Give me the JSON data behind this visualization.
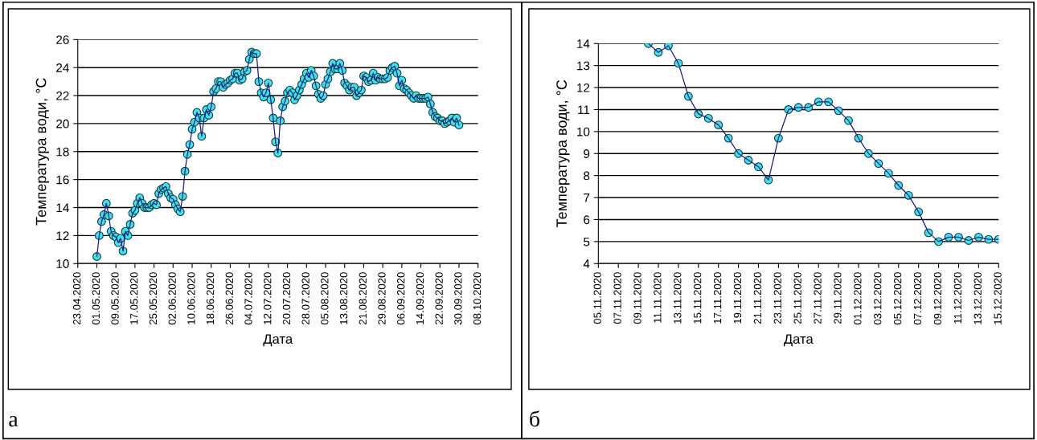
{
  "chart_data": [
    {
      "type": "line",
      "xlabel": "Дата",
      "ylabel": "Температура води, °C",
      "annotations": [
        "а"
      ],
      "x": [
        "2020-05-01",
        "2020-05-02",
        "2020-05-03",
        "2020-05-04",
        "2020-05-05",
        "2020-05-06",
        "2020-05-07",
        "2020-05-08",
        "2020-05-09",
        "2020-05-10",
        "2020-05-11",
        "2020-05-12",
        "2020-05-13",
        "2020-05-14",
        "2020-05-15",
        "2020-05-16",
        "2020-05-17",
        "2020-05-18",
        "2020-05-19",
        "2020-05-20",
        "2020-05-21",
        "2020-05-22",
        "2020-05-23",
        "2020-05-24",
        "2020-05-25",
        "2020-05-26",
        "2020-05-27",
        "2020-05-28",
        "2020-05-29",
        "2020-05-30",
        "2020-05-31",
        "2020-06-01",
        "2020-06-02",
        "2020-06-03",
        "2020-06-04",
        "2020-06-05",
        "2020-06-06",
        "2020-06-07",
        "2020-06-08",
        "2020-06-09",
        "2020-06-10",
        "2020-06-11",
        "2020-06-12",
        "2020-06-13",
        "2020-06-14",
        "2020-06-15",
        "2020-06-16",
        "2020-06-17",
        "2020-06-18",
        "2020-06-19",
        "2020-06-20",
        "2020-06-21",
        "2020-06-22",
        "2020-06-23",
        "2020-06-24",
        "2020-06-25",
        "2020-06-26",
        "2020-06-27",
        "2020-06-28",
        "2020-06-29",
        "2020-06-30",
        "2020-07-01",
        "2020-07-02",
        "2020-07-03",
        "2020-07-04",
        "2020-07-05",
        "2020-07-06",
        "2020-07-07",
        "2020-07-08",
        "2020-07-09",
        "2020-07-10",
        "2020-07-11",
        "2020-07-12",
        "2020-07-13",
        "2020-07-14",
        "2020-07-15",
        "2020-07-16",
        "2020-07-17",
        "2020-07-18",
        "2020-07-19",
        "2020-07-20",
        "2020-07-21",
        "2020-07-22",
        "2020-07-23",
        "2020-07-24",
        "2020-07-25",
        "2020-07-26",
        "2020-07-27",
        "2020-07-28",
        "2020-07-29",
        "2020-07-30",
        "2020-07-31",
        "2020-08-01",
        "2020-08-02",
        "2020-08-03",
        "2020-08-04",
        "2020-08-05",
        "2020-08-06",
        "2020-08-07",
        "2020-08-08",
        "2020-08-09",
        "2020-08-10",
        "2020-08-11",
        "2020-08-12",
        "2020-08-13",
        "2020-08-14",
        "2020-08-15",
        "2020-08-16",
        "2020-08-17",
        "2020-08-18",
        "2020-08-19",
        "2020-08-20",
        "2020-08-21",
        "2020-08-22",
        "2020-08-23",
        "2020-08-24",
        "2020-08-25",
        "2020-08-26",
        "2020-08-27",
        "2020-08-28",
        "2020-08-29",
        "2020-08-30",
        "2020-08-31",
        "2020-09-01",
        "2020-09-02",
        "2020-09-03",
        "2020-09-04",
        "2020-09-05",
        "2020-09-06",
        "2020-09-07",
        "2020-09-08",
        "2020-09-09",
        "2020-09-10",
        "2020-09-11",
        "2020-09-12",
        "2020-09-13",
        "2020-09-14",
        "2020-09-15",
        "2020-09-16",
        "2020-09-17",
        "2020-09-18",
        "2020-09-19",
        "2020-09-20",
        "2020-09-21",
        "2020-09-22",
        "2020-09-23",
        "2020-09-24",
        "2020-09-25",
        "2020-09-26",
        "2020-09-27",
        "2020-09-28",
        "2020-09-29",
        "2020-09-30"
      ],
      "series": [
        {
          "color": "#1a1a8c",
          "values": [
            10.5,
            12.0,
            13.0,
            13.5,
            14.3,
            13.4,
            12.3,
            12.0,
            11.9,
            11.5,
            11.8,
            10.9,
            12.3,
            12.0,
            12.8,
            13.6,
            13.8,
            14.3,
            14.7,
            14.3,
            14.0,
            14.0,
            14.0,
            14.2,
            14.3,
            14.2,
            15.0,
            15.3,
            15.4,
            15.5,
            15.0,
            14.7,
            14.6,
            14.2,
            13.9,
            13.7,
            14.8,
            16.6,
            17.8,
            18.5,
            19.6,
            20.1,
            20.8,
            20.4,
            19.1,
            20.4,
            21.0,
            20.6,
            21.2,
            22.3,
            22.5,
            23.0,
            23.0,
            22.6,
            22.8,
            22.9,
            23.1,
            23.2,
            23.6,
            23.6,
            23.1,
            23.2,
            23.7,
            23.8,
            24.6,
            25.1,
            25.0,
            25.0,
            23.0,
            22.2,
            21.9,
            22.2,
            22.9,
            21.7,
            20.4,
            18.7,
            17.9,
            20.2,
            21.2,
            21.6,
            22.2,
            22.4,
            22.2,
            21.7,
            22.0,
            22.4,
            22.8,
            23.2,
            23.6,
            23.3,
            23.8,
            23.4,
            22.7,
            22.1,
            21.8,
            22.0,
            22.8,
            23.2,
            23.7,
            24.3,
            23.9,
            23.9,
            24.3,
            23.8,
            22.9,
            22.7,
            22.4,
            22.6,
            22.6,
            22.0,
            22.2,
            22.4,
            23.4,
            23.3,
            23.0,
            23.1,
            23.6,
            23.1,
            23.3,
            23.2,
            23.2,
            23.2,
            23.3,
            23.8,
            24.0,
            24.1,
            23.6,
            22.7,
            23.1,
            22.5,
            22.4,
            22.2,
            22.0,
            21.8,
            22.0,
            21.8,
            21.8,
            21.8,
            21.8,
            21.9,
            21.4,
            20.8,
            20.5,
            20.4,
            20.2,
            20.2,
            20.0,
            20.1,
            20.2,
            20.4,
            20.1,
            20.4,
            19.9
          ]
        }
      ],
      "marker": "circle",
      "line_style": "solid",
      "grid": "y",
      "legend": false,
      "xlim": [
        "2020-04-23",
        "2020-10-08"
      ],
      "xticks": [
        {
          "value": "2020-04-23",
          "label": "23.04.2020"
        },
        {
          "value": "2020-05-01",
          "label": "01.05.2020"
        },
        {
          "value": "2020-05-09",
          "label": "09.05.2020"
        },
        {
          "value": "2020-05-17",
          "label": "17.05.2020"
        },
        {
          "value": "2020-05-25",
          "label": "25.05.2020"
        },
        {
          "value": "2020-06-02",
          "label": "02.06.2020"
        },
        {
          "value": "2020-06-10",
          "label": "10.06.2020"
        },
        {
          "value": "2020-06-18",
          "label": "18.06.2020"
        },
        {
          "value": "2020-06-26",
          "label": "26.06.2020"
        },
        {
          "value": "2020-07-04",
          "label": "04.07.2020"
        },
        {
          "value": "2020-07-12",
          "label": "12.07.2020"
        },
        {
          "value": "2020-07-20",
          "label": "20.07.2020"
        },
        {
          "value": "2020-07-28",
          "label": "28.07.2020"
        },
        {
          "value": "2020-08-05",
          "label": "05.08.2020"
        },
        {
          "value": "2020-08-13",
          "label": "13.08.2020"
        },
        {
          "value": "2020-08-21",
          "label": "21.08.2020"
        },
        {
          "value": "2020-08-29",
          "label": "29.08.2020"
        },
        {
          "value": "2020-09-06",
          "label": "06.09.2020"
        },
        {
          "value": "2020-09-14",
          "label": "14.09.2020"
        },
        {
          "value": "2020-09-22",
          "label": "22.09.2020"
        },
        {
          "value": "2020-09-30",
          "label": "30.09.2020"
        },
        {
          "value": "2020-10-08",
          "label": "08.10.2020"
        }
      ],
      "ylim": [
        10,
        26
      ],
      "yticks": [
        10,
        12,
        14,
        16,
        18,
        20,
        22,
        24,
        26
      ]
    },
    {
      "type": "line",
      "xlabel": "Дата",
      "ylabel": "Температура води, °C",
      "annotations": [
        "б"
      ],
      "x": [
        "2020-11-10",
        "2020-11-11",
        "2020-11-12",
        "2020-11-13",
        "2020-11-14",
        "2020-11-15",
        "2020-11-16",
        "2020-11-17",
        "2020-11-18",
        "2020-11-19",
        "2020-11-20",
        "2020-11-21",
        "2020-11-22",
        "2020-11-23",
        "2020-11-24",
        "2020-11-25",
        "2020-11-26",
        "2020-11-27",
        "2020-11-28",
        "2020-11-29",
        "2020-11-30",
        "2020-12-01",
        "2020-12-02",
        "2020-12-03",
        "2020-12-04",
        "2020-12-05",
        "2020-12-06",
        "2020-12-07",
        "2020-12-08",
        "2020-12-09",
        "2020-12-10",
        "2020-12-11",
        "2020-12-12",
        "2020-12-13",
        "2020-12-14",
        "2020-12-15"
      ],
      "series": [
        {
          "color": "#1a1a8c",
          "values": [
            14.0,
            13.6,
            13.9,
            13.1,
            11.6,
            10.8,
            10.6,
            10.3,
            9.7,
            9.0,
            8.7,
            8.4,
            7.8,
            9.7,
            11.0,
            11.1,
            11.1,
            11.35,
            11.35,
            10.95,
            10.5,
            9.7,
            9.0,
            8.55,
            8.1,
            7.55,
            7.1,
            6.35,
            5.4,
            5.0,
            5.2,
            5.2,
            5.05,
            5.2,
            5.1,
            5.1
          ]
        }
      ],
      "marker": "circle",
      "line_style": "solid",
      "grid": "y",
      "legend": false,
      "xlim": [
        "2020-11-05",
        "2020-12-15"
      ],
      "xticks": [
        {
          "value": "2020-11-05",
          "label": "05.11.2020"
        },
        {
          "value": "2020-11-07",
          "label": "07.11.2020"
        },
        {
          "value": "2020-11-09",
          "label": "09.11.2020"
        },
        {
          "value": "2020-11-11",
          "label": "11.11.2020"
        },
        {
          "value": "2020-11-13",
          "label": "13.11.2020"
        },
        {
          "value": "2020-11-15",
          "label": "15.11.2020"
        },
        {
          "value": "2020-11-17",
          "label": "17.11.2020"
        },
        {
          "value": "2020-11-19",
          "label": "19.11.2020"
        },
        {
          "value": "2020-11-21",
          "label": "21.11.2020"
        },
        {
          "value": "2020-11-23",
          "label": "23.11.2020"
        },
        {
          "value": "2020-11-25",
          "label": "25.11.2020"
        },
        {
          "value": "2020-11-27",
          "label": "27.11.2020"
        },
        {
          "value": "2020-11-29",
          "label": "29.11.2020"
        },
        {
          "value": "2020-12-01",
          "label": "01.12.2020"
        },
        {
          "value": "2020-12-03",
          "label": "03.12.2020"
        },
        {
          "value": "2020-12-05",
          "label": "05.12.2020"
        },
        {
          "value": "2020-12-07",
          "label": "07.12.2020"
        },
        {
          "value": "2020-12-09",
          "label": "09.12.2020"
        },
        {
          "value": "2020-12-11",
          "label": "11.12.2020"
        },
        {
          "value": "2020-12-13",
          "label": "13.12.2020"
        },
        {
          "value": "2020-12-15",
          "label": "15.12.2020"
        }
      ],
      "ylim": [
        4,
        14
      ],
      "yticks": [
        4,
        5,
        6,
        7,
        8,
        9,
        10,
        11,
        12,
        13,
        14
      ]
    }
  ]
}
